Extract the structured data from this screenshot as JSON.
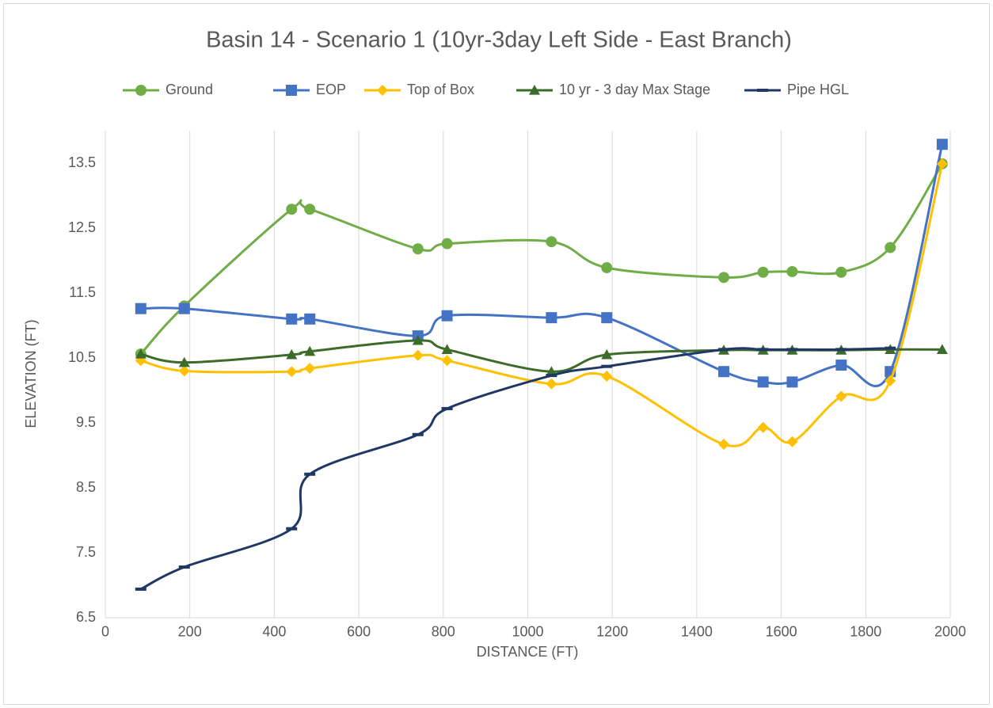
{
  "chart_data": {
    "type": "line",
    "title": "Basin 14 - Scenario 1 (10yr-3day Left Side - East Branch)",
    "x_label": "DISTANCE (FT)",
    "y_label": "ELEVATION (FT)",
    "x": [
      84,
      187,
      441,
      484,
      740,
      809,
      1056,
      1187,
      1464,
      1557,
      1626,
      1742,
      1858,
      1981
    ],
    "series": [
      {
        "name": "Ground",
        "color": "#70ad47",
        "marker": "circle",
        "values": [
          10.56,
          11.3,
          12.79,
          12.79,
          12.18,
          12.26,
          12.29,
          11.89,
          11.74,
          11.82,
          11.83,
          11.82,
          12.2,
          13.49
        ]
      },
      {
        "name": "EOP",
        "color": "#4472c4",
        "marker": "square",
        "values": [
          11.26,
          11.26,
          11.1,
          11.1,
          10.84,
          11.15,
          11.12,
          11.12,
          10.29,
          10.13,
          10.13,
          10.39,
          10.29,
          13.79
        ]
      },
      {
        "name": "Top of Box",
        "color": "#ffc000",
        "marker": "diamond",
        "values": [
          10.46,
          10.3,
          10.29,
          10.34,
          10.54,
          10.46,
          10.1,
          10.22,
          9.17,
          9.43,
          9.21,
          9.91,
          10.15,
          13.49
        ]
      },
      {
        "name": "10 yr - 3 day Max Stage",
        "color": "#3d6b2a",
        "marker": "triangle",
        "values": [
          10.56,
          10.43,
          10.55,
          10.6,
          10.77,
          10.63,
          10.29,
          10.55,
          10.62,
          10.62,
          10.62,
          10.62,
          10.63,
          10.63
        ]
      },
      {
        "name": "Pipe HGL",
        "color": "#1f3864",
        "marker": "dash",
        "values": [
          6.94,
          7.28,
          7.87,
          8.71,
          9.32,
          9.72,
          10.23,
          10.37,
          10.63,
          10.63,
          10.63,
          10.63,
          10.65,
          null
        ]
      }
    ],
    "xlim": [
      0,
      2000
    ],
    "xticks": [
      0,
      200,
      400,
      600,
      800,
      1000,
      1200,
      1400,
      1600,
      1800,
      2000
    ],
    "ylim": [
      6.5,
      14
    ],
    "yticks": [
      6.5,
      7.5,
      8.5,
      9.5,
      10.5,
      11.5,
      12.5,
      13.5
    ],
    "grid": "x",
    "legend": "top"
  }
}
